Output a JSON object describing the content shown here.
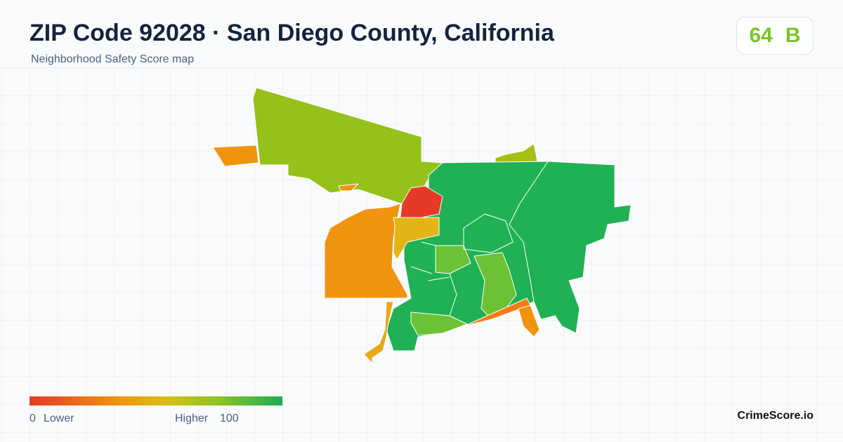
{
  "header": {
    "title": "ZIP Code 92028 · San Diego County, California",
    "subtitle": "Neighborhood Safety Score map"
  },
  "score": {
    "value": 64,
    "grade": "B"
  },
  "legend": {
    "min": 0,
    "min_label": "Lower",
    "max_label": "Higher",
    "max": 100
  },
  "brand": "CrimeScore.io"
}
